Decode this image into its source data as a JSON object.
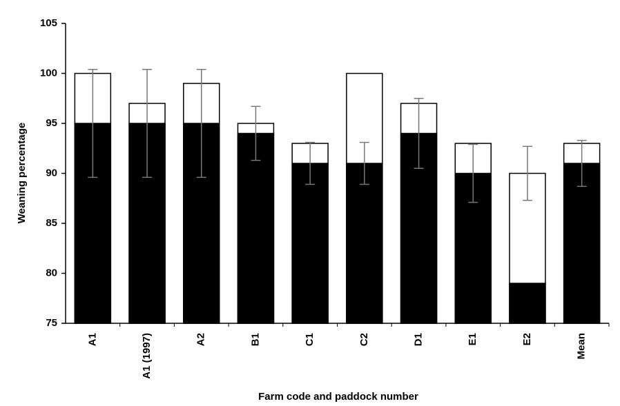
{
  "chart_data": {
    "type": "bar",
    "categories": [
      "A1",
      "A1 (1997)",
      "A2",
      "B1",
      "C1",
      "C2",
      "D1",
      "E1",
      "E2",
      "Mean"
    ],
    "series": [
      {
        "color": "#ffffff",
        "values": [
          100,
          97,
          99,
          95,
          93,
          100,
          97,
          93,
          90,
          93
        ],
        "errors": [
          null,
          null,
          null,
          null,
          null,
          null,
          null,
          null,
          2.7,
          null
        ]
      },
      {
        "color": "#000000",
        "values": [
          95,
          95,
          95,
          94,
          91,
          91,
          94,
          90,
          79,
          91
        ],
        "errors": [
          5.4,
          5.4,
          5.4,
          2.7,
          2.1,
          2.1,
          3.5,
          2.9,
          null,
          2.3
        ]
      }
    ],
    "ylabel": "Weaning percentage",
    "xlabel": "Farm code and paddock number",
    "ylim": [
      75,
      105
    ],
    "yticks": [
      75,
      80,
      85,
      90,
      95,
      100,
      105
    ]
  }
}
